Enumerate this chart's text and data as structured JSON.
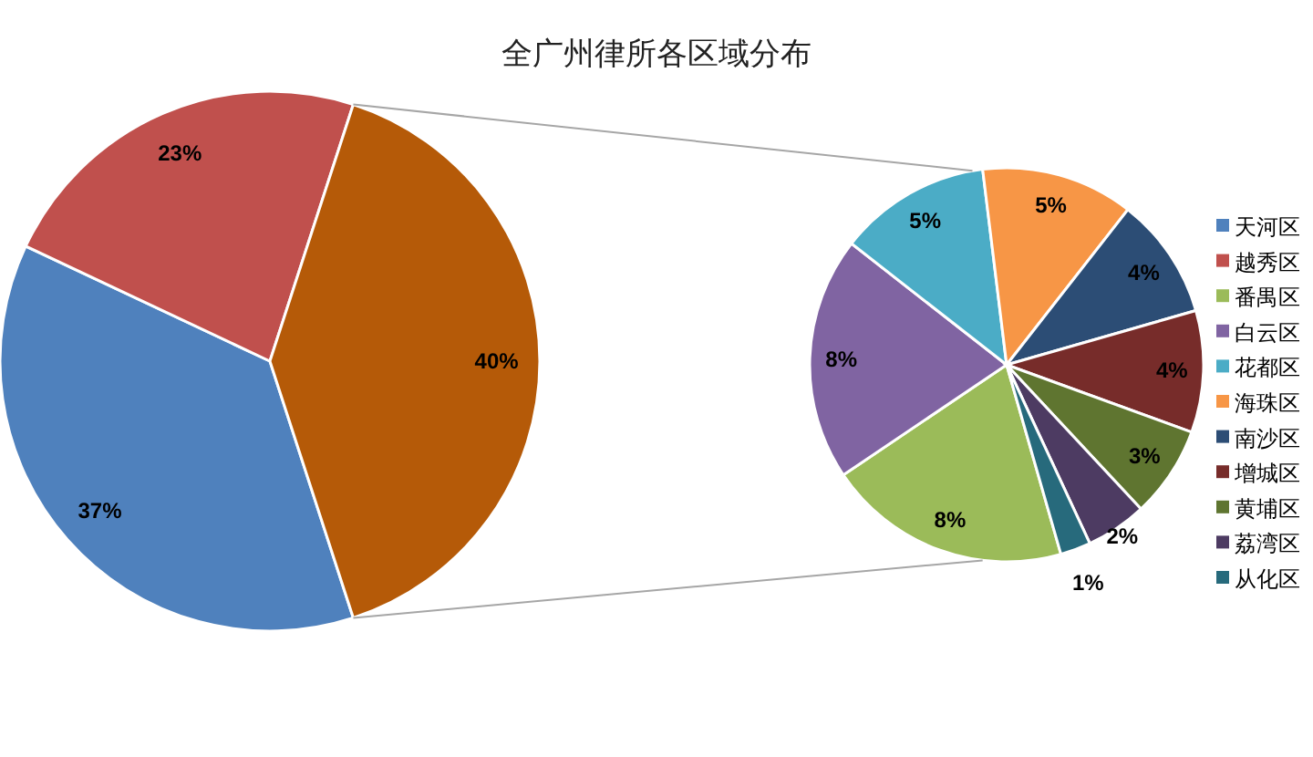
{
  "chart_data": [
    {
      "type": "pie",
      "title": "全广州律所各区域分布",
      "categories": [
        "天河区",
        "越秀区",
        null
      ],
      "values": [
        37,
        23,
        40
      ],
      "colors": [
        "#4f81bd",
        "#c0504d",
        "#b55a08"
      ],
      "value_labels": [
        "37%",
        "23%",
        "40%"
      ],
      "legend": "right"
    },
    {
      "type": "pie",
      "categories": [
        "番禺区",
        "白云区",
        "花都区",
        "海珠区",
        "南沙区",
        "增城区",
        "黄埔区",
        "荔湾区",
        "从化区"
      ],
      "values": [
        8,
        8,
        5,
        5,
        4,
        4,
        3,
        2,
        1
      ],
      "colors": [
        "#9bbb59",
        "#8064a2",
        "#4bacc6",
        "#f79646",
        "#2c4d75",
        "#772c2a",
        "#5f7530",
        "#4d3b62",
        "#276a7c"
      ],
      "value_labels": [
        "8%",
        "8%",
        "5%",
        "5%",
        "4%",
        "4%",
        "3%",
        "2%",
        "1%"
      ],
      "legend": "right"
    }
  ]
}
